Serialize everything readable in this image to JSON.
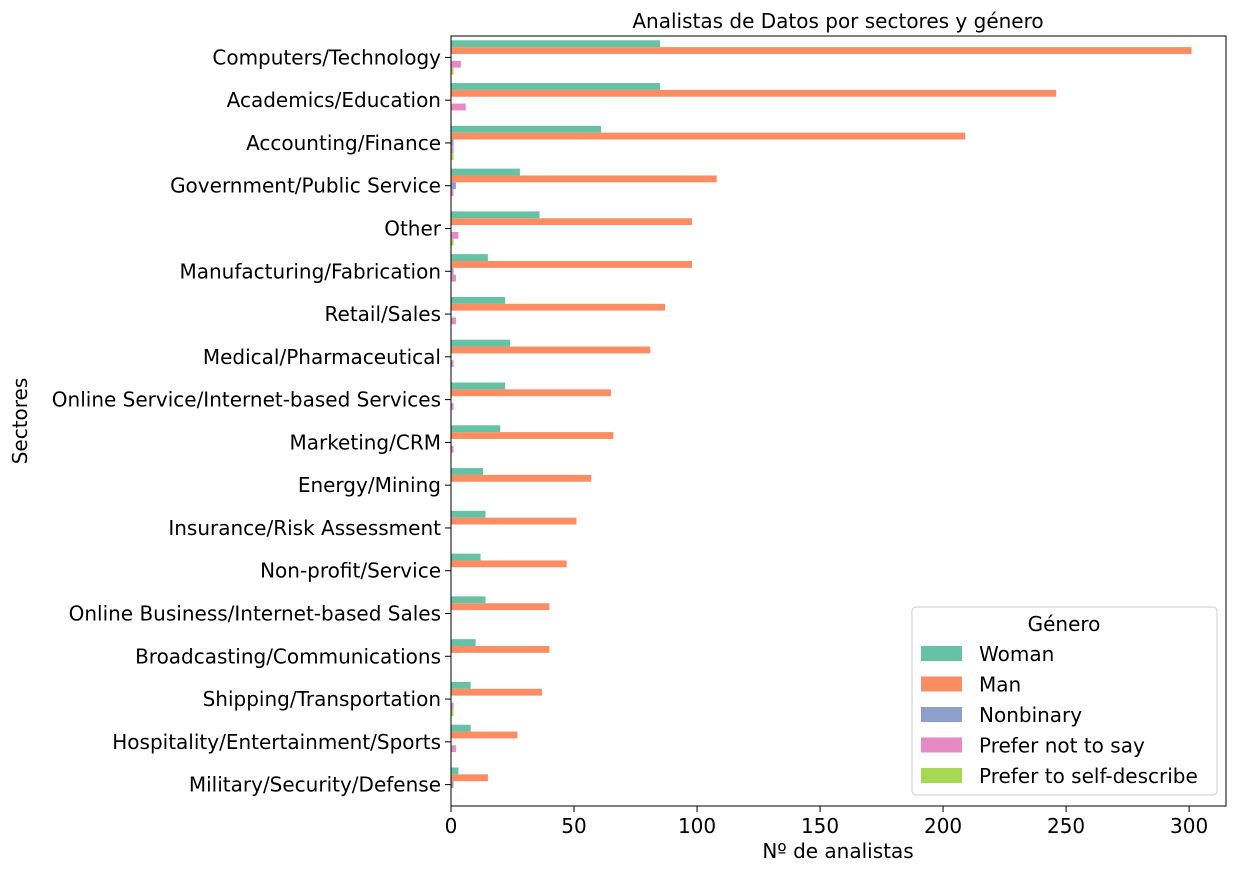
{
  "chart_data": {
    "type": "bar",
    "orientation": "horizontal",
    "title": "Analistas de Datos por sectores y género",
    "xlabel": "Nº de analistas",
    "ylabel": "Sectores",
    "xlim": [
      0,
      315
    ],
    "xticks": [
      0,
      50,
      100,
      150,
      200,
      250,
      300
    ],
    "grid": false,
    "legend_title": "Género",
    "legend_position": "bottom-right",
    "categories": [
      "Computers/Technology",
      "Academics/Education",
      "Accounting/Finance",
      "Government/Public Service",
      "Other",
      "Manufacturing/Fabrication",
      "Retail/Sales",
      "Medical/Pharmaceutical",
      "Online Service/Internet-based Services",
      "Marketing/CRM",
      "Energy/Mining",
      "Insurance/Risk Assessment",
      "Non-profit/Service",
      "Online Business/Internet-based Sales",
      "Broadcasting/Communications",
      "Shipping/Transportation",
      "Hospitality/Entertainment/Sports",
      "Military/Security/Defense"
    ],
    "series": [
      {
        "name": "Woman",
        "color": "#66c2a5",
        "values": [
          85,
          85,
          61,
          28,
          36,
          15,
          22,
          24,
          22,
          20,
          13,
          14,
          12,
          14,
          10,
          8,
          8,
          3
        ]
      },
      {
        "name": "Man",
        "color": "#fc8d62",
        "values": [
          301,
          246,
          209,
          108,
          98,
          98,
          87,
          81,
          65,
          66,
          57,
          51,
          47,
          40,
          40,
          37,
          27,
          15
        ]
      },
      {
        "name": "Nonbinary",
        "color": "#8da0cb",
        "values": [
          0,
          0,
          1,
          2,
          0,
          1,
          0,
          0,
          0,
          0,
          0,
          0,
          0,
          0,
          0,
          0,
          0,
          1
        ]
      },
      {
        "name": "Prefer not to say",
        "color": "#e78ac3",
        "values": [
          4,
          6,
          1,
          1,
          3,
          2,
          2,
          1,
          1,
          1,
          0,
          0,
          0,
          0,
          0,
          1,
          2,
          0
        ]
      },
      {
        "name": "Prefer to self-describe",
        "color": "#a6d854",
        "values": [
          1,
          0,
          1,
          0,
          1,
          0,
          0,
          0,
          0,
          0,
          0,
          0,
          0,
          0,
          0,
          1,
          0,
          0
        ]
      }
    ]
  }
}
